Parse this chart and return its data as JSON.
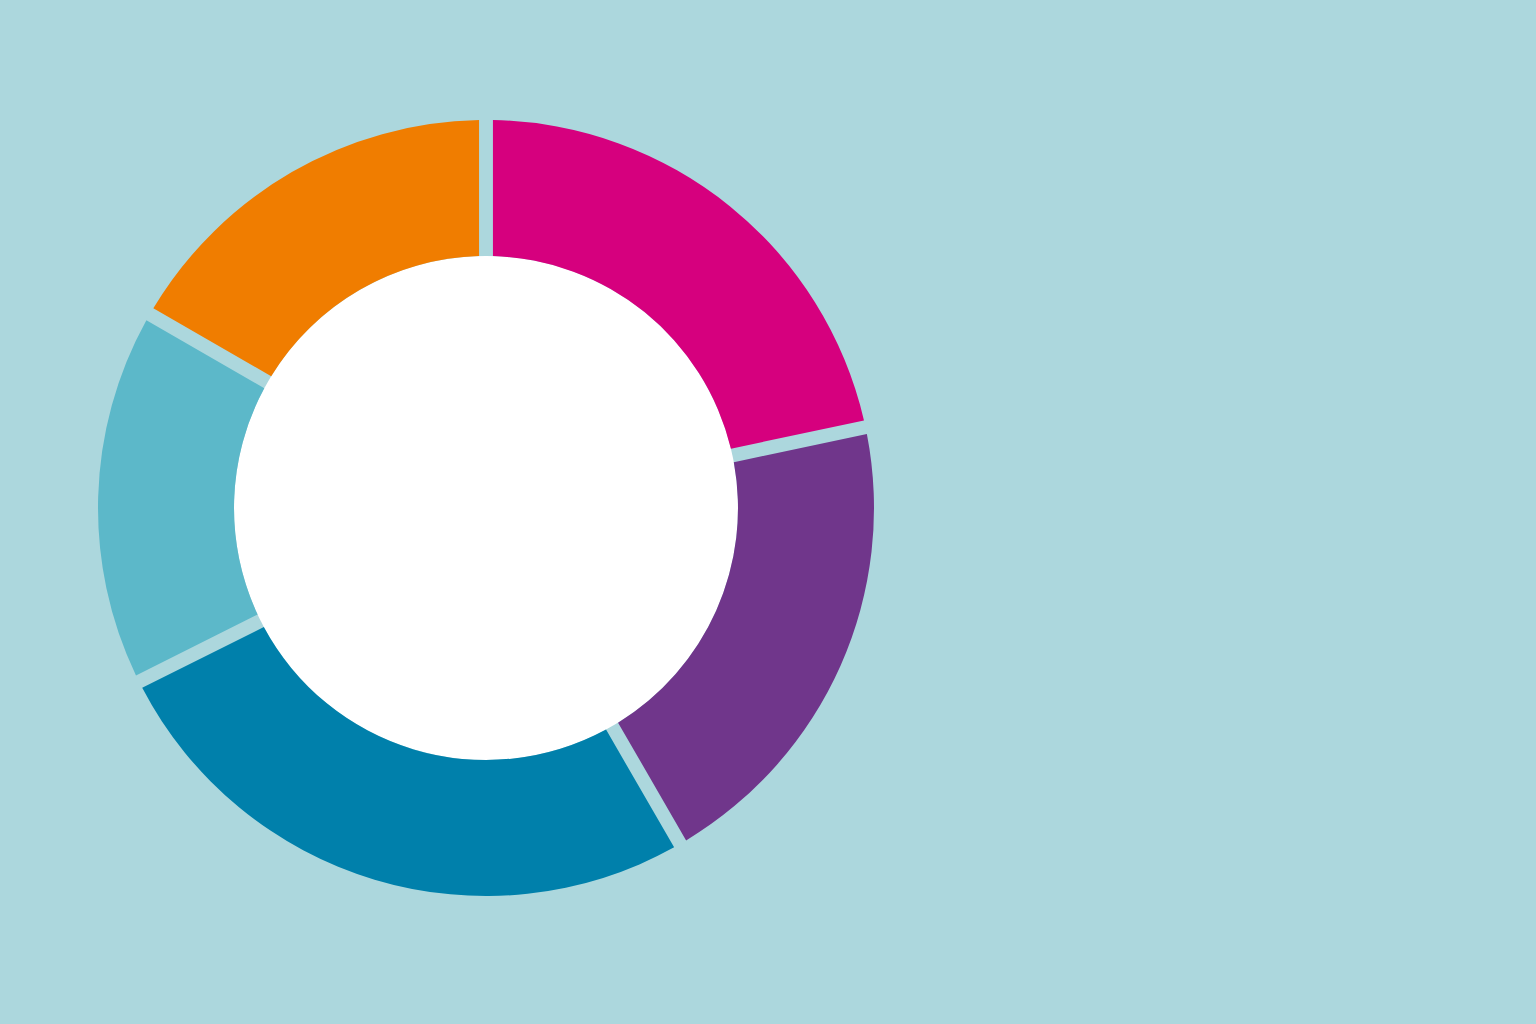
{
  "chart_data": {
    "type": "donut",
    "categories": [
      null,
      null,
      null,
      null,
      null
    ],
    "values": [
      21.7,
      20,
      26.1,
      15.6,
      16.6
    ],
    "colors": [
      "#d6007e",
      "#70368b",
      "#0080ab",
      "#5cb8c9",
      "#f07d00"
    ]
  }
}
